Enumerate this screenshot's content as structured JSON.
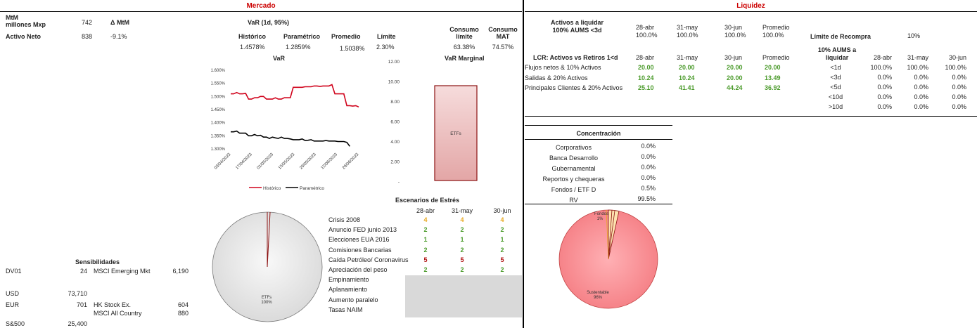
{
  "mercado": {
    "title": "Mercado",
    "mtm_label": "MtM\nmillones Mxp",
    "mtm_value": "742",
    "delta_label": "Δ MtM",
    "activo_label": "Activo Neto",
    "activo_value": "838",
    "activo_delta": "-9.1%",
    "var_title": "VaR (1d, 95%)",
    "var_headers": [
      "Histórico",
      "Paramétrico",
      "Promedio",
      "Límite"
    ],
    "var_values": [
      "1.4578%",
      "1.2859%",
      "1.5038%",
      "2.30%"
    ],
    "consumo_limite_label": "Consumo\nlímite",
    "consumo_limite_value": "63.38%",
    "consumo_mat_label": "Consumo\nMAT",
    "consumo_mat_value": "74.57%",
    "var_chart": {
      "title": "VaR",
      "y_ticks": [
        "1.600%",
        "1.550%",
        "1.500%",
        "1.450%",
        "1.400%",
        "1.350%",
        "1.300%"
      ],
      "x_ticks": [
        "03/04/2023",
        "17/04/2023",
        "01/05/2023",
        "15/05/2023",
        "29/05/2023",
        "12/06/2023",
        "26/06/2023"
      ],
      "legend": [
        "Histórico",
        "Paramétrico"
      ]
    },
    "marginal_chart": {
      "title": "VaR Marginal",
      "y_ticks": [
        "12.00",
        "10.00",
        "8.00",
        "6.00",
        "4.00",
        "2.00",
        "-"
      ],
      "bar_label": "ETFs"
    },
    "pie_label": "ETFs",
    "pie_pct": "100%",
    "sensibilidades": {
      "title": "Sensibilidades",
      "rows": [
        {
          "label": "DV01",
          "value": "24",
          "idx": "MSCI Emerging Mkt",
          "idx_value": "6,190"
        },
        {
          "label": "USD",
          "value": "73,710",
          "idx": "",
          "idx_value": ""
        },
        {
          "label": "EUR",
          "value": "701",
          "idx": "HK Stock Ex.",
          "idx_value": "604"
        },
        {
          "label": "",
          "value": "",
          "idx": "MSCI All Country",
          "idx_value": "880"
        },
        {
          "label": "S&500",
          "value": "25,400",
          "idx": "",
          "idx_value": ""
        }
      ]
    },
    "estres": {
      "title": "Escenarios de Estrés",
      "headers": [
        "28-abr",
        "31-may",
        "30-jun"
      ],
      "rows": [
        {
          "label": "Crisis 2008",
          "vals": [
            "4",
            "4",
            "4"
          ],
          "cls": "yel"
        },
        {
          "label": "Anuncio FED junio 2013",
          "vals": [
            "2",
            "2",
            "2"
          ],
          "cls": "grn"
        },
        {
          "label": "Elecciones EUA 2016",
          "vals": [
            "1",
            "1",
            "1"
          ],
          "cls": "grn"
        },
        {
          "label": "Comisiones Bancarias",
          "vals": [
            "2",
            "2",
            "2"
          ],
          "cls": "grn"
        },
        {
          "label": "Caída Petróleo/ Coronavirus",
          "vals": [
            "5",
            "5",
            "5"
          ],
          "cls": "dred"
        },
        {
          "label": "Apreciación del peso",
          "vals": [
            "2",
            "2",
            "2"
          ],
          "cls": "grn"
        },
        {
          "label": "Empinamiento",
          "vals": [
            "",
            "",
            ""
          ],
          "cls": "grn"
        },
        {
          "label": "Aplanamiento",
          "vals": [
            "",
            "",
            ""
          ],
          "cls": "grn"
        },
        {
          "label": "Aumento paralelo",
          "vals": [
            "",
            "",
            ""
          ],
          "cls": "grn"
        },
        {
          "label": "Tasas NAIM",
          "vals": [
            "",
            "",
            ""
          ],
          "cls": "grn"
        }
      ]
    }
  },
  "liquidez": {
    "title": "Liquidez",
    "activos_title": "Activos a liquidar\n100% AUMS <3d",
    "activos_headers": [
      "28-abr",
      "31-may",
      "30-jun",
      "Promedio"
    ],
    "activos_values": [
      "100.0%",
      "100.0%",
      "100.0%",
      "100.0%"
    ],
    "recompra_label": "Límite de Recompra",
    "recompra_value": "10%",
    "lcr_title": "LCR: Activos vs Retiros 1<d",
    "lcr_headers": [
      "28-abr",
      "31-may",
      "30-jun",
      "Promedio"
    ],
    "lcr_rows": [
      {
        "label": "Flujos netos & 10% Activos",
        "vals": [
          "20.00",
          "20.00",
          "20.00",
          "20.00"
        ]
      },
      {
        "label": "Salidas & 20% Activos",
        "vals": [
          "10.24",
          "10.24",
          "20.00",
          "13.49"
        ]
      },
      {
        "label": "Principales Clientes & 20% Activos",
        "vals": [
          "25.10",
          "41.41",
          "44.24",
          "36.92"
        ]
      }
    ],
    "aums_title": "10% AUMS a\nliquidar",
    "aums_headers": [
      "28-abr",
      "31-may",
      "30-jun"
    ],
    "aums_rows": [
      {
        "label": "<1d",
        "vals": [
          "100.0%",
          "100.0%",
          "100.0%"
        ]
      },
      {
        "label": "<3d",
        "vals": [
          "0.0%",
          "0.0%",
          "0.0%"
        ]
      },
      {
        "label": "<5d",
        "vals": [
          "0.0%",
          "0.0%",
          "0.0%"
        ]
      },
      {
        "label": "<10d",
        "vals": [
          "0.0%",
          "0.0%",
          "0.0%"
        ]
      },
      {
        "label": ">10d",
        "vals": [
          "0.0%",
          "0.0%",
          "0.0%"
        ]
      }
    ],
    "concentracion": {
      "title": "Concentración",
      "rows": [
        {
          "label": "Corporativos",
          "value": "0.0%"
        },
        {
          "label": "Banca Desarrollo",
          "value": "0.0%"
        },
        {
          "label": "Gubernamental",
          "value": "0.0%"
        },
        {
          "label": "Reportos y chequeras",
          "value": "0.0%"
        },
        {
          "label": "Fondos / ETF D",
          "value": "0.5%"
        },
        {
          "label": "RV",
          "value": "99.5%"
        }
      ]
    },
    "pie_fondos_label": "Fondos",
    "pie_fondos_pct": "1%",
    "pie_sust_label": "Sustentable",
    "pie_sust_pct": "96%"
  },
  "colors": {
    "header_red": "#cc0000",
    "var_hist": "#d0021b",
    "var_param": "#000000",
    "green": "#4a9a2a",
    "yellow": "#e8a820"
  }
}
